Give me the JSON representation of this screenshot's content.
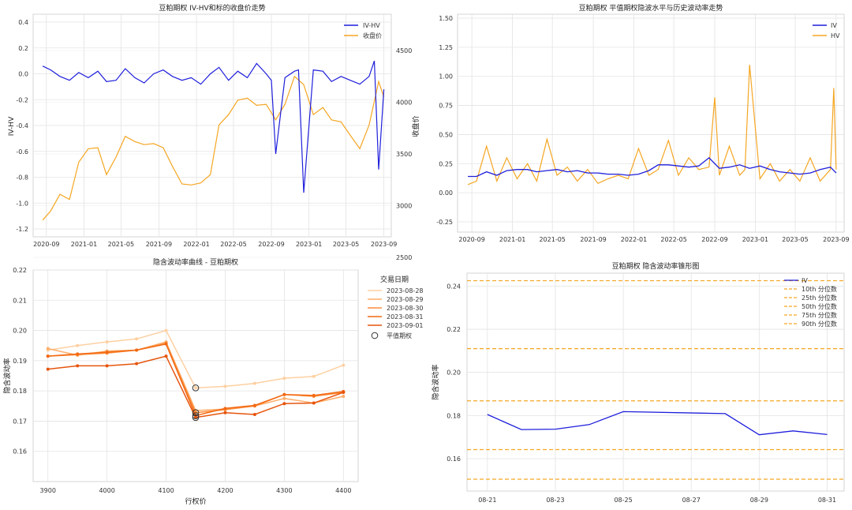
{
  "panels": {
    "p1": {
      "title": "豆粕期权 IV-HV和标的收盘价走势",
      "ylabel_left": "IV-HV",
      "ylabel_right": "收盘价",
      "legend": [
        "IV-HV",
        "收盘价"
      ],
      "left_ticks": [
        "0.4",
        "0.2",
        "0.0",
        "-0.2",
        "-0.4",
        "-0.6",
        "-0.8",
        "-1.0",
        "-1.2"
      ],
      "right_ticks": [
        "4500",
        "4000",
        "3500",
        "3000",
        "2500"
      ],
      "x_ticks": [
        "2020-09",
        "2021-01",
        "2021-05",
        "2021-09",
        "2022-01",
        "2022-05",
        "2022-09",
        "2023-01",
        "2023-05",
        "2023-09"
      ]
    },
    "p2": {
      "title": "豆粕期权 平值期权隐波水平与历史波动率走势",
      "legend": [
        "IV",
        "HV"
      ],
      "y_ticks": [
        "1.50",
        "1.25",
        "1.00",
        "0.75",
        "0.50",
        "0.25",
        "0.00",
        "-0.25"
      ],
      "x_ticks": [
        "2020-09",
        "2021-01",
        "2021-05",
        "2021-09",
        "2022-01",
        "2022-05",
        "2022-09",
        "2023-01",
        "2023-05",
        "2023-09"
      ]
    },
    "p3": {
      "title": "隐含波动率曲线 - 豆粕期权",
      "xlabel": "行权价",
      "ylabel": "隐含波动率",
      "legend_title": "交易日期",
      "legend": [
        "2023-08-28",
        "2023-08-29",
        "2023-08-30",
        "2023-08-31",
        "2023-09-01",
        "平值期权"
      ],
      "y_ticks": [
        "0.22",
        "0.21",
        "0.20",
        "0.19",
        "0.18",
        "0.17",
        "0.16"
      ],
      "x_ticks": [
        "3900",
        "4000",
        "4100",
        "4200",
        "4300",
        "4400"
      ]
    },
    "p4": {
      "title": "豆粕期权 隐含波动率锥形图",
      "ylabel": "隐含波动率",
      "legend": [
        "IV",
        "10th 分位数",
        "25th 分位数",
        "50th 分位数",
        "75th 分位数",
        "90th 分位数"
      ],
      "y_ticks": [
        "0.24",
        "0.22",
        "0.20",
        "0.18",
        "0.16"
      ],
      "x_ticks": [
        "08-21",
        "08-23",
        "08-25",
        "08-27",
        "08-29",
        "08-31"
      ]
    }
  },
  "colors": {
    "iv": "#1f1fdc",
    "hv": "#f5a623",
    "right_axis": "#d62728",
    "left_axis": "#1f77b4",
    "smile": [
      "#fdd0a2",
      "#fdae6b",
      "#fd8d3c",
      "#f16913",
      "#e6550d"
    ]
  },
  "chart_data": [
    {
      "type": "line",
      "title": "豆粕期权 IV-HV和标的收盘价走势",
      "series": [
        {
          "name": "IV-HV",
          "axis": "left",
          "x": [
            "2020-08-20",
            "2020-09-15",
            "2020-10-15",
            "2020-11-15",
            "2020-12-15",
            "2021-01-15",
            "2021-02-15",
            "2021-03-15",
            "2021-04-15",
            "2021-05-15",
            "2021-06-15",
            "2021-07-15",
            "2021-08-15",
            "2021-09-15",
            "2021-10-15",
            "2021-11-15",
            "2021-12-15",
            "2022-01-15",
            "2022-02-15",
            "2022-03-15",
            "2022-04-15",
            "2022-05-15",
            "2022-06-15",
            "2022-07-15",
            "2022-08-15",
            "2022-09-01",
            "2022-09-15",
            "2022-10-15",
            "2022-11-15",
            "2022-11-28",
            "2022-12-15",
            "2023-01-15",
            "2023-02-15",
            "2023-03-15",
            "2023-04-15",
            "2023-05-15",
            "2023-06-15",
            "2023-07-15",
            "2023-08-01",
            "2023-08-15",
            "2023-09-01"
          ],
          "values": [
            0.06,
            0.03,
            -0.02,
            -0.05,
            0.01,
            -0.03,
            0.02,
            -0.06,
            -0.05,
            0.04,
            -0.03,
            -0.07,
            0.0,
            0.03,
            -0.02,
            -0.05,
            -0.03,
            -0.08,
            0.0,
            0.05,
            -0.05,
            0.02,
            -0.03,
            0.08,
            0.0,
            -0.05,
            -0.62,
            -0.03,
            0.02,
            0.03,
            -0.92,
            0.03,
            0.02,
            -0.06,
            -0.02,
            -0.05,
            -0.08,
            -0.02,
            0.1,
            -0.74,
            -0.12
          ]
        },
        {
          "name": "收盘价",
          "axis": "right",
          "x": [
            "2020-08-20",
            "2020-09-15",
            "2020-10-15",
            "2020-11-15",
            "2020-12-15",
            "2021-01-15",
            "2021-02-15",
            "2021-03-15",
            "2021-04-15",
            "2021-05-15",
            "2021-06-15",
            "2021-07-15",
            "2021-08-15",
            "2021-09-15",
            "2021-10-15",
            "2021-11-15",
            "2021-12-15",
            "2022-01-15",
            "2022-02-15",
            "2022-03-15",
            "2022-04-15",
            "2022-05-15",
            "2022-06-15",
            "2022-07-15",
            "2022-08-15",
            "2022-09-15",
            "2022-10-15",
            "2022-11-15",
            "2022-12-15",
            "2023-01-15",
            "2023-02-15",
            "2023-03-15",
            "2023-04-15",
            "2023-05-15",
            "2023-06-15",
            "2023-07-15",
            "2023-08-15",
            "2023-09-01"
          ],
          "values": [
            2860,
            2950,
            3110,
            3060,
            3420,
            3550,
            3560,
            3300,
            3470,
            3670,
            3620,
            3590,
            3600,
            3560,
            3380,
            3210,
            3200,
            3220,
            3300,
            3780,
            3880,
            4020,
            4040,
            3970,
            3980,
            3830,
            3980,
            4250,
            4170,
            3880,
            3950,
            3830,
            3810,
            3680,
            3550,
            3780,
            4200,
            4050
          ]
        }
      ],
      "ylim_left": [
        -1.2,
        0.4
      ],
      "ylim_right": [
        2500,
        4500
      ]
    },
    {
      "type": "line",
      "title": "豆粕期权 平值期权隐波水平与历史波动率走势",
      "series": [
        {
          "name": "IV",
          "x": [
            "2020-08-20",
            "2020-09-15",
            "2020-10-15",
            "2020-11-15",
            "2020-12-15",
            "2021-01-15",
            "2021-02-15",
            "2021-03-15",
            "2021-04-15",
            "2021-05-15",
            "2021-06-15",
            "2021-07-15",
            "2021-08-15",
            "2021-09-15",
            "2021-10-15",
            "2021-11-15",
            "2021-12-15",
            "2022-01-15",
            "2022-02-15",
            "2022-03-15",
            "2022-04-15",
            "2022-05-15",
            "2022-06-15",
            "2022-07-15",
            "2022-08-15",
            "2022-09-15",
            "2022-10-15",
            "2022-11-15",
            "2022-12-15",
            "2023-01-15",
            "2023-02-15",
            "2023-03-15",
            "2023-04-15",
            "2023-05-15",
            "2023-06-15",
            "2023-07-15",
            "2023-08-15",
            "2023-09-01"
          ],
          "values": [
            0.14,
            0.14,
            0.18,
            0.15,
            0.19,
            0.2,
            0.2,
            0.18,
            0.19,
            0.2,
            0.18,
            0.19,
            0.17,
            0.17,
            0.16,
            0.16,
            0.15,
            0.16,
            0.19,
            0.24,
            0.24,
            0.23,
            0.22,
            0.23,
            0.3,
            0.21,
            0.22,
            0.24,
            0.21,
            0.23,
            0.2,
            0.18,
            0.17,
            0.16,
            0.17,
            0.2,
            0.22,
            0.17
          ]
        },
        {
          "name": "HV",
          "x": [
            "2020-08-20",
            "2020-09-15",
            "2020-10-15",
            "2020-11-15",
            "2020-12-15",
            "2021-01-15",
            "2021-02-15",
            "2021-03-15",
            "2021-04-15",
            "2021-05-15",
            "2021-06-15",
            "2021-07-15",
            "2021-08-15",
            "2021-09-15",
            "2021-10-15",
            "2021-11-15",
            "2021-12-15",
            "2022-01-15",
            "2022-02-15",
            "2022-03-15",
            "2022-04-15",
            "2022-05-15",
            "2022-06-15",
            "2022-07-15",
            "2022-08-15",
            "2022-09-01",
            "2022-09-15",
            "2022-10-15",
            "2022-11-15",
            "2022-12-01",
            "2022-12-15",
            "2023-01-15",
            "2023-02-15",
            "2023-03-15",
            "2023-04-15",
            "2023-05-15",
            "2023-06-15",
            "2023-07-15",
            "2023-08-15",
            "2023-08-25",
            "2023-09-01"
          ],
          "values": [
            0.07,
            0.1,
            0.4,
            0.1,
            0.3,
            0.12,
            0.25,
            0.1,
            0.46,
            0.15,
            0.22,
            0.1,
            0.2,
            0.08,
            0.12,
            0.15,
            0.12,
            0.38,
            0.15,
            0.2,
            0.45,
            0.15,
            0.3,
            0.2,
            0.22,
            0.82,
            0.15,
            0.4,
            0.15,
            0.2,
            1.1,
            0.12,
            0.25,
            0.1,
            0.2,
            0.1,
            0.3,
            0.1,
            0.2,
            0.9,
            0.2
          ]
        }
      ],
      "ylim": [
        -0.25,
        1.5
      ]
    },
    {
      "type": "line",
      "title": "隐含波动率曲线 - 豆粕期权",
      "xlabel": "行权价",
      "ylabel": "隐含波动率",
      "x": [
        3900,
        3950,
        4000,
        4050,
        4100,
        4150,
        4200,
        4250,
        4300,
        4350,
        4400
      ],
      "series": [
        {
          "name": "2023-08-28",
          "values": [
            0.1935,
            0.195,
            0.1962,
            0.1972,
            0.2,
            0.181,
            0.1815,
            0.1825,
            0.1842,
            0.1848,
            0.1885
          ]
        },
        {
          "name": "2023-08-29",
          "values": [
            0.194,
            0.1918,
            0.1932,
            0.1935,
            0.1962,
            0.1735,
            0.174,
            0.175,
            0.1775,
            0.176,
            0.1782
          ]
        },
        {
          "name": "2023-08-30",
          "values": [
            0.1915,
            0.192,
            0.1925,
            0.1935,
            0.1958,
            0.1728,
            0.1738,
            0.175,
            0.1788,
            0.1782,
            0.1795
          ]
        },
        {
          "name": "2023-08-31",
          "values": [
            0.1915,
            0.1922,
            0.1928,
            0.1935,
            0.1955,
            0.1718,
            0.1742,
            0.1752,
            0.1788,
            0.1785,
            0.1798
          ]
        },
        {
          "name": "2023-09-01",
          "values": [
            0.1872,
            0.1883,
            0.1883,
            0.189,
            0.1915,
            0.1712,
            0.1728,
            0.1722,
            0.1758,
            0.176,
            0.1795
          ]
        }
      ],
      "atm": {
        "name": "平值期权",
        "x": [
          4150,
          4150,
          4150,
          4150
        ],
        "values": [
          0.181,
          0.1728,
          0.1718,
          0.1712
        ]
      },
      "ylim": [
        0.15,
        0.22
      ],
      "xlim": [
        3875,
        4425
      ]
    },
    {
      "type": "line",
      "title": "豆粕期权 隐含波动率锥形图",
      "ylabel": "隐含波动率",
      "x": [
        "08-21",
        "08-22",
        "08-23",
        "08-24",
        "08-25",
        "08-28",
        "08-29",
        "08-30",
        "08-31"
      ],
      "series": [
        {
          "name": "IV",
          "values": [
            0.1805,
            0.1735,
            0.1737,
            0.1758,
            0.1818,
            0.1809,
            0.1711,
            0.1729,
            0.1712
          ]
        }
      ],
      "quantiles": [
        {
          "name": "10th 分位数",
          "value": 0.1505
        },
        {
          "name": "25th 分位数",
          "value": 0.1642
        },
        {
          "name": "50th 分位数",
          "value": 0.1868
        },
        {
          "name": "75th 分位数",
          "value": 0.211
        },
        {
          "name": "90th 分位数",
          "value": 0.2425
        }
      ],
      "ylim": [
        0.145,
        0.246
      ]
    }
  ]
}
